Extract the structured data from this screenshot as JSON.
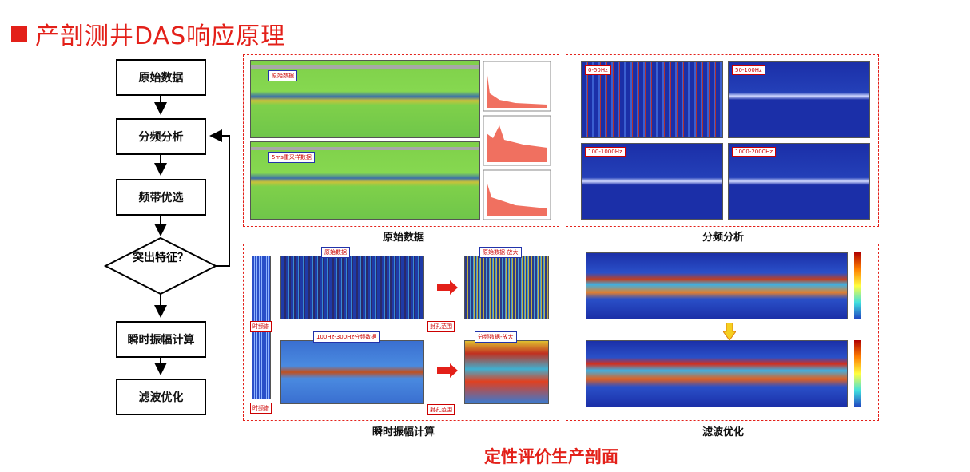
{
  "title": "产剖测井DAS响应原理",
  "flow": {
    "step1": "原始数据",
    "step2": "分频分析",
    "step3": "频带优选",
    "decision": "突出特征？",
    "step4": "瞬时振幅计算",
    "step5": "滤波优化"
  },
  "panels": {
    "raw": {
      "caption": "原始数据",
      "label_top": "原始数据",
      "label_bottom": "5ms重采样数据"
    },
    "freq": {
      "caption": "分频分析",
      "bands": [
        "0-50Hz",
        "50-100Hz",
        "100-1000Hz",
        "1000-2000Hz"
      ]
    },
    "amp": {
      "caption": "瞬时振幅计算",
      "top_main": "原始数据",
      "top_zoom": "原始数据-放大",
      "bottom_main": "100Hz-300Hz分频数据",
      "bottom_zoom": "分频数据-放大",
      "spectrum_label": "时频谱",
      "perf_label": "射孔范围"
    },
    "filter": {
      "caption": "滤波优化"
    }
  },
  "conclusion": "定性评价生产剖面",
  "colors": {
    "accent": "#e32019",
    "heat_green": "#7fd04a",
    "heat_blue": "#1b2fa8"
  }
}
